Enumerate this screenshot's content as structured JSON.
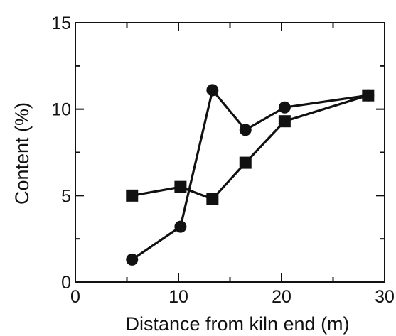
{
  "chart_data": {
    "type": "line",
    "xlabel": "Distance from kiln end (m)",
    "ylabel": "Content (%)",
    "xlim": [
      0,
      30
    ],
    "ylim": [
      0,
      15
    ],
    "x_ticks": [
      0,
      10,
      20,
      30
    ],
    "y_ticks": [
      0,
      5,
      10,
      15
    ],
    "x_tick_labels": [
      "0",
      "10",
      "20",
      "30"
    ],
    "y_tick_labels": [
      "0",
      "5",
      "10",
      "15"
    ],
    "grid": false,
    "legend": "none",
    "series": [
      {
        "marker": "circle",
        "color": "#111111",
        "x": [
          5.5,
          10.2,
          13.3,
          16.5,
          20.3,
          28.4
        ],
        "y": [
          1.3,
          3.2,
          11.1,
          8.8,
          10.1,
          10.8
        ]
      },
      {
        "marker": "square",
        "color": "#111111",
        "x": [
          5.5,
          10.2,
          13.3,
          16.5,
          20.3,
          28.4
        ],
        "y": [
          5.0,
          5.5,
          4.8,
          6.9,
          9.3,
          10.8
        ]
      }
    ]
  }
}
